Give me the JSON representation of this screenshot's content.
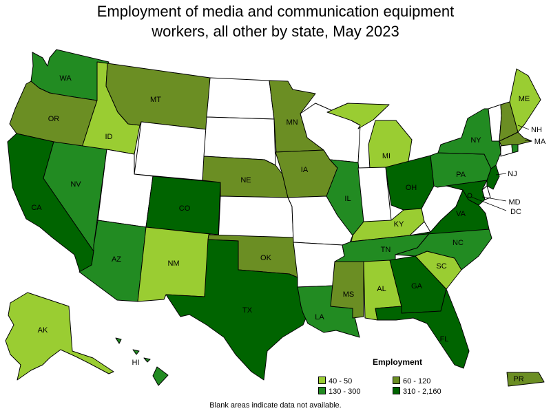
{
  "title_line1": "Employment of media and communication equipment",
  "title_line2": "workers, all other by state, May 2023",
  "legend": {
    "title": "Employment",
    "bins": [
      {
        "label": "40 - 50",
        "color": "#9acd32"
      },
      {
        "label": "60 - 120",
        "color": "#6b8e23"
      },
      {
        "label": "130 - 300",
        "color": "#228b22"
      },
      {
        "label": "310 - 2,160",
        "color": "#006400"
      }
    ]
  },
  "note": "Blank areas indicate data not available.",
  "states": {
    "WA": {
      "label": "WA",
      "bin": 2
    },
    "OR": {
      "label": "OR",
      "bin": 1
    },
    "CA": {
      "label": "CA",
      "bin": 3
    },
    "ID": {
      "label": "ID",
      "bin": 0
    },
    "NV": {
      "label": "NV",
      "bin": 2
    },
    "MT": {
      "label": "MT",
      "bin": 1
    },
    "WY": {
      "label": "",
      "bin": -1
    },
    "UT": {
      "label": "",
      "bin": -1
    },
    "AZ": {
      "label": "AZ",
      "bin": 2
    },
    "CO": {
      "label": "CO",
      "bin": 3
    },
    "NM": {
      "label": "NM",
      "bin": 0
    },
    "ND": {
      "label": "",
      "bin": -1
    },
    "SD": {
      "label": "",
      "bin": -1
    },
    "NE": {
      "label": "NE",
      "bin": 1
    },
    "KS": {
      "label": "",
      "bin": -1
    },
    "OK": {
      "label": "OK",
      "bin": 1
    },
    "TX": {
      "label": "TX",
      "bin": 3
    },
    "MN": {
      "label": "MN",
      "bin": 1
    },
    "IA": {
      "label": "IA",
      "bin": 1
    },
    "MO": {
      "label": "",
      "bin": -1
    },
    "AR": {
      "label": "",
      "bin": -1
    },
    "LA": {
      "label": "LA",
      "bin": 2
    },
    "WI": {
      "label": "",
      "bin": -1
    },
    "IL": {
      "label": "IL",
      "bin": 2
    },
    "MI": {
      "label": "MI",
      "bin": 0
    },
    "IN": {
      "label": "",
      "bin": -1
    },
    "OH": {
      "label": "OH",
      "bin": 3
    },
    "KY": {
      "label": "KY",
      "bin": 0
    },
    "TN": {
      "label": "TN",
      "bin": 2
    },
    "MS": {
      "label": "MS",
      "bin": 1
    },
    "AL": {
      "label": "AL",
      "bin": 0
    },
    "GA": {
      "label": "GA",
      "bin": 3
    },
    "FL": {
      "label": "FL",
      "bin": 3
    },
    "SC": {
      "label": "SC",
      "bin": 0
    },
    "NC": {
      "label": "NC",
      "bin": 2
    },
    "VA": {
      "label": "VA",
      "bin": 3
    },
    "WV": {
      "label": "",
      "bin": -1
    },
    "PA": {
      "label": "PA",
      "bin": 2
    },
    "NY": {
      "label": "NY",
      "bin": 2
    },
    "ME": {
      "label": "ME",
      "bin": 0
    },
    "VT": {
      "label": "",
      "bin": -1
    },
    "NH": {
      "label": "NH",
      "bin": 1
    },
    "MA": {
      "label": "MA",
      "bin": 1
    },
    "CT": {
      "label": "",
      "bin": -1
    },
    "RI": {
      "label": "",
      "bin": 2
    },
    "NJ": {
      "label": "NJ",
      "bin": 3
    },
    "MD": {
      "label": "MD",
      "bin": 3
    },
    "DE": {
      "label": "",
      "bin": -1
    },
    "DC": {
      "label": "DC",
      "bin": 3
    },
    "AK": {
      "label": "AK",
      "bin": 0
    },
    "HI": {
      "label": "HI",
      "bin": 2
    },
    "PR": {
      "label": "PR",
      "bin": 1
    }
  }
}
